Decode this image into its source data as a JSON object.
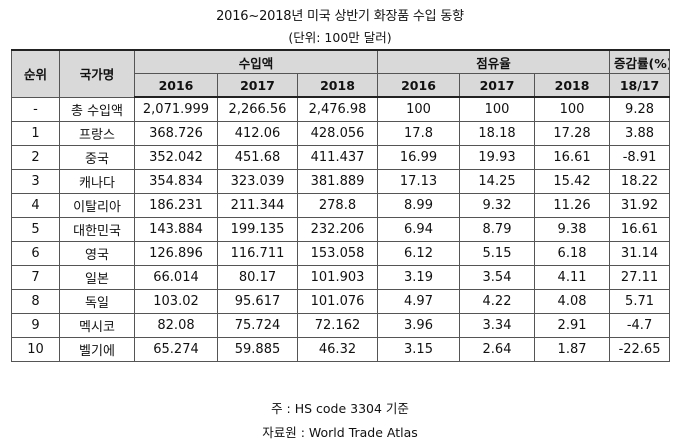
{
  "title": "2016~2018년 미국 상반기 화장품 수입 동향",
  "unit": "(단위: 100만 달러)",
  "headers": {
    "rank": "순위",
    "country": "국가명",
    "import_amount": "수입액",
    "share": "점유율",
    "change": "증감률(%)",
    "years": [
      "2016",
      "2017",
      "2018"
    ],
    "change_period": "18/17"
  },
  "rows": [
    {
      "rank": "-",
      "country": "총 수입액",
      "imp": [
        "2,071.999",
        "2,266.56",
        "2,476.98"
      ],
      "share": [
        "100",
        "100",
        "100"
      ],
      "change": "9.28"
    },
    {
      "rank": "1",
      "country": "프랑스",
      "imp": [
        "368.726",
        "412.06",
        "428.056"
      ],
      "share": [
        "17.8",
        "18.18",
        "17.28"
      ],
      "change": "3.88"
    },
    {
      "rank": "2",
      "country": "중국",
      "imp": [
        "352.042",
        "451.68",
        "411.437"
      ],
      "share": [
        "16.99",
        "19.93",
        "16.61"
      ],
      "change": "-8.91"
    },
    {
      "rank": "3",
      "country": "캐나다",
      "imp": [
        "354.834",
        "323.039",
        "381.889"
      ],
      "share": [
        "17.13",
        "14.25",
        "15.42"
      ],
      "change": "18.22"
    },
    {
      "rank": "4",
      "country": "이탈리아",
      "imp": [
        "186.231",
        "211.344",
        "278.8"
      ],
      "share": [
        "8.99",
        "9.32",
        "11.26"
      ],
      "change": "31.92"
    },
    {
      "rank": "5",
      "country": "대한민국",
      "imp": [
        "143.884",
        "199.135",
        "232.206"
      ],
      "share": [
        "6.94",
        "8.79",
        "9.38"
      ],
      "change": "16.61"
    },
    {
      "rank": "6",
      "country": "영국",
      "imp": [
        "126.896",
        "116.711",
        "153.058"
      ],
      "share": [
        "6.12",
        "5.15",
        "6.18"
      ],
      "change": "31.14"
    },
    {
      "rank": "7",
      "country": "일본",
      "imp": [
        "66.014",
        "80.17",
        "101.903"
      ],
      "share": [
        "3.19",
        "3.54",
        "4.11"
      ],
      "change": "27.11"
    },
    {
      "rank": "8",
      "country": "독일",
      "imp": [
        "103.02",
        "95.617",
        "101.076"
      ],
      "share": [
        "4.97",
        "4.22",
        "4.08"
      ],
      "change": "5.71"
    },
    {
      "rank": "9",
      "country": "멕시코",
      "imp": [
        "82.08",
        "75.724",
        "72.162"
      ],
      "share": [
        "3.96",
        "3.34",
        "2.91"
      ],
      "change": "-4.7"
    },
    {
      "rank": "10",
      "country": "벨기에",
      "imp": [
        "65.274",
        "59.885",
        "46.32"
      ],
      "share": [
        "3.15",
        "2.64",
        "1.87"
      ],
      "change": "-22.65"
    }
  ],
  "notes": {
    "note": "주 : HS code 3304 기준",
    "source": "자료원 : World Trade Atlas"
  }
}
